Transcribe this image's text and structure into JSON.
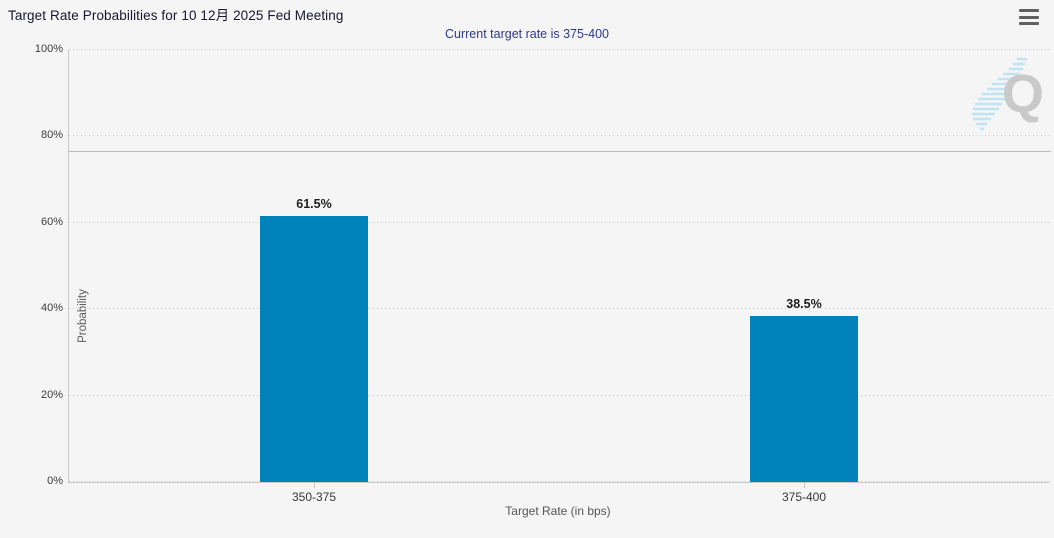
{
  "chart_data": {
    "type": "bar",
    "title": "Target Rate Probabilities for 10 12月 2025 Fed Meeting",
    "subtitle": "Current target rate is 375-400",
    "categories": [
      "350-375",
      "375-400"
    ],
    "values": [
      61.5,
      38.5
    ],
    "value_labels": [
      "61.5%",
      "38.5%"
    ],
    "xlabel": "Target Rate (in bps)",
    "ylabel": "Probability",
    "ylim": [
      0,
      100
    ],
    "yticks": [
      0,
      20,
      40,
      60,
      80,
      100
    ],
    "ytick_labels": [
      "0%",
      "20%",
      "40%",
      "60%",
      "80%",
      "100%"
    ],
    "grid": "horizontal dotted lines every 20%",
    "legend": "none",
    "reference_line": 76.6,
    "bar_color": "#0082ba"
  },
  "menu": {
    "icon": "hamburger-icon"
  },
  "watermark": {
    "icon": "quikstrike-q-logo",
    "letter": "Q"
  },
  "colors": {
    "background": "#f5f5f5",
    "bar": "#0082ba",
    "title": "#17172e",
    "subtitle": "#2d3a87",
    "axis_line": "#c9c9c9",
    "reference_line": "#bbbbbb",
    "watermark_gray": "#c9c9c9",
    "watermark_blue": "#b8e2f4"
  }
}
